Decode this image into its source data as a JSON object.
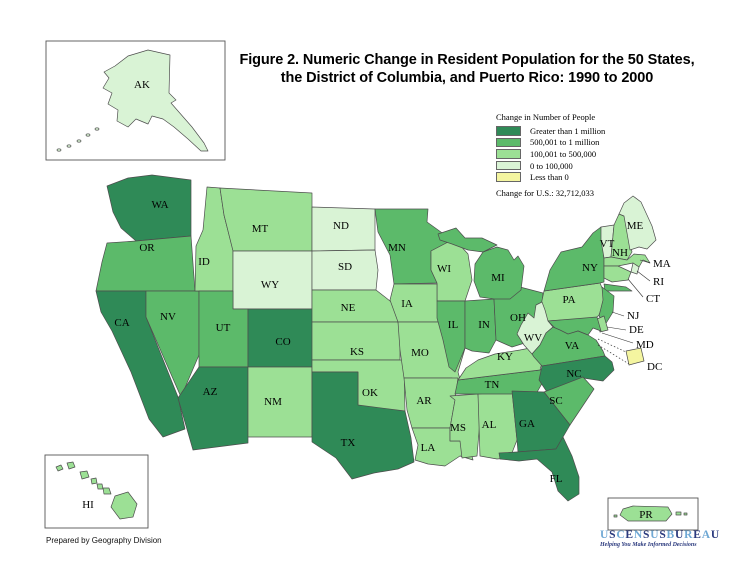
{
  "title": {
    "line1": "Figure 2.  Numeric Change in Resident Population for the 50 States,",
    "line2": "the District of Columbia, and Puerto Rico: 1990 to 2000"
  },
  "legend": {
    "heading": "Change in Number of People",
    "colors": {
      "gt1m": "#2F8A57",
      "m500k_1m": "#5CBA6A",
      "k100_500": "#9CE095",
      "k0_100": "#D9F3D5",
      "lt0": "#F4F5A0"
    },
    "items": [
      {
        "key": "gt1m",
        "label": "Greater than 1 million"
      },
      {
        "key": "m500k_1m",
        "label": "500,001 to 1 million"
      },
      {
        "key": "k100_500",
        "label": "100,001 to 500,000"
      },
      {
        "key": "k0_100",
        "label": "0 to 100,000"
      },
      {
        "key": "lt0",
        "label": "Less than 0"
      }
    ],
    "us_change_label": "Change for U.S.: 32,712,033"
  },
  "footer": {
    "credit": "Prepared by Geography Division"
  },
  "logo": {
    "dark_color": "#2B3A7E",
    "light_color": "#6FA8D4",
    "letters": [
      {
        "c": "U",
        "t": "light"
      },
      {
        "c": "S",
        "t": "dark"
      },
      {
        "c": "C",
        "t": "light"
      },
      {
        "c": "E",
        "t": "dark"
      },
      {
        "c": "N",
        "t": "light"
      },
      {
        "c": "S",
        "t": "dark"
      },
      {
        "c": "U",
        "t": "light"
      },
      {
        "c": "S",
        "t": "dark"
      },
      {
        "c": "B",
        "t": "light"
      },
      {
        "c": "U",
        "t": "dark"
      },
      {
        "c": "R",
        "t": "light"
      },
      {
        "c": "E",
        "t": "dark"
      },
      {
        "c": "A",
        "t": "light"
      },
      {
        "c": "U",
        "t": "dark"
      }
    ],
    "tagline": "Helping You Make Informed Decisions"
  },
  "chart_data": {
    "type": "choropleth",
    "subject": "Numeric change in resident population, 1990 to 2000",
    "us_total_change": 32712033,
    "category_legend": {
      "gt1m": "Greater than 1 million",
      "m500k_1m": "500,001 to 1 million",
      "k100_500": "100,001 to 500,000",
      "k0_100": "0 to 100,000",
      "lt0": "Less than 0"
    },
    "states": {
      "WA": {
        "label": "WA",
        "category": "gt1m"
      },
      "OR": {
        "label": "OR",
        "category": "m500k_1m"
      },
      "CA": {
        "label": "CA",
        "category": "gt1m"
      },
      "NV": {
        "label": "NV",
        "category": "m500k_1m"
      },
      "ID": {
        "label": "ID",
        "category": "k100_500"
      },
      "MT": {
        "label": "MT",
        "category": "k100_500"
      },
      "WY": {
        "label": "WY",
        "category": "k0_100"
      },
      "UT": {
        "label": "UT",
        "category": "m500k_1m"
      },
      "CO": {
        "label": "CO",
        "category": "gt1m"
      },
      "AZ": {
        "label": "AZ",
        "category": "gt1m"
      },
      "NM": {
        "label": "NM",
        "category": "k100_500"
      },
      "ND": {
        "label": "ND",
        "category": "k0_100"
      },
      "SD": {
        "label": "SD",
        "category": "k0_100"
      },
      "NE": {
        "label": "NE",
        "category": "k100_500"
      },
      "KS": {
        "label": "KS",
        "category": "k100_500"
      },
      "OK": {
        "label": "OK",
        "category": "k100_500"
      },
      "TX": {
        "label": "TX",
        "category": "gt1m"
      },
      "MN": {
        "label": "MN",
        "category": "m500k_1m"
      },
      "IA": {
        "label": "IA",
        "category": "k100_500"
      },
      "MO": {
        "label": "MO",
        "category": "k100_500"
      },
      "AR": {
        "label": "AR",
        "category": "k100_500"
      },
      "LA": {
        "label": "LA",
        "category": "k100_500"
      },
      "WI": {
        "label": "WI",
        "category": "k100_500"
      },
      "IL": {
        "label": "IL",
        "category": "m500k_1m"
      },
      "IN": {
        "label": "IN",
        "category": "m500k_1m"
      },
      "MI": {
        "label": "MI",
        "category": "m500k_1m"
      },
      "OH": {
        "label": "OH",
        "category": "m500k_1m"
      },
      "KY": {
        "label": "KY",
        "category": "k100_500"
      },
      "TN": {
        "label": "TN",
        "category": "m500k_1m"
      },
      "MS": {
        "label": "MS",
        "category": "k100_500"
      },
      "AL": {
        "label": "AL",
        "category": "k100_500"
      },
      "GA": {
        "label": "GA",
        "category": "gt1m"
      },
      "FL": {
        "label": "FL",
        "category": "gt1m"
      },
      "SC": {
        "label": "SC",
        "category": "m500k_1m"
      },
      "NC": {
        "label": "NC",
        "category": "gt1m"
      },
      "VA": {
        "label": "VA",
        "category": "m500k_1m"
      },
      "WV": {
        "label": "WV",
        "category": "k0_100"
      },
      "MD": {
        "label": "MD",
        "category": "m500k_1m"
      },
      "DE": {
        "label": "DE",
        "category": "k100_500"
      },
      "NJ": {
        "label": "NJ",
        "category": "m500k_1m"
      },
      "PA": {
        "label": "PA",
        "category": "k100_500"
      },
      "NY": {
        "label": "NY",
        "category": "m500k_1m"
      },
      "CT": {
        "label": "CT",
        "category": "k100_500"
      },
      "RI": {
        "label": "RI",
        "category": "k0_100"
      },
      "MA": {
        "label": "MA",
        "category": "k100_500"
      },
      "VT": {
        "label": "VT",
        "category": "k0_100"
      },
      "NH": {
        "label": "NH",
        "category": "k100_500"
      },
      "ME": {
        "label": "ME",
        "category": "k0_100"
      },
      "AK": {
        "label": "AK",
        "category": "k0_100"
      },
      "HI": {
        "label": "HI",
        "category": "k100_500"
      },
      "DC": {
        "label": "DC",
        "category": "lt0"
      },
      "PR": {
        "label": "PR",
        "category": "k100_500"
      }
    }
  }
}
